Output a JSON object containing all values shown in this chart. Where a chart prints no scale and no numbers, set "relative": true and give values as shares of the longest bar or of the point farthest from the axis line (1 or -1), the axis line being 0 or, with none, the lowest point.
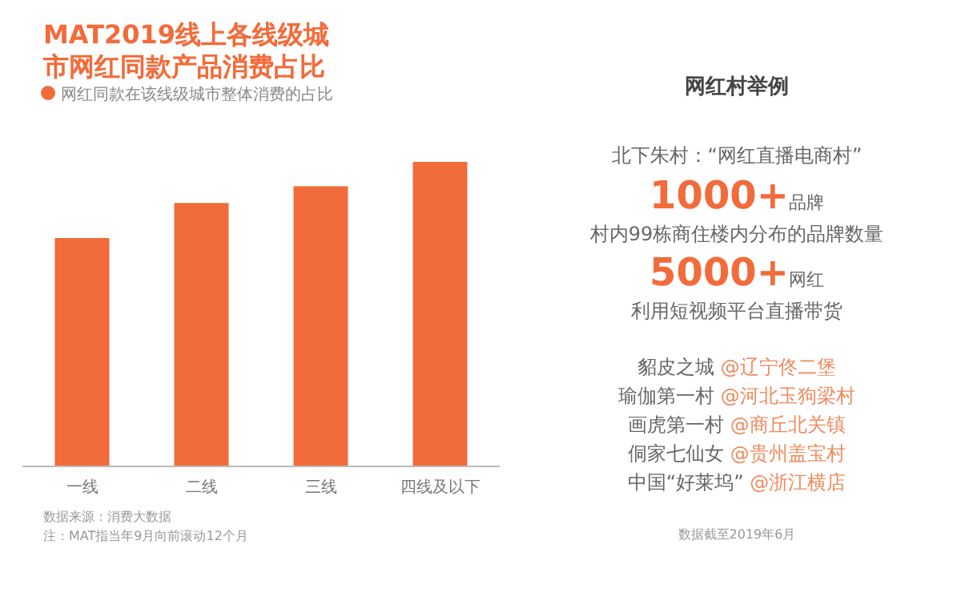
{
  "chart_data": [
    {
      "type": "bar",
      "title": "MAT2019线上各线级城市网红同款产品消费占比",
      "relative": true,
      "legend": "top left",
      "categories": [
        "一线",
        "二线",
        "三线",
        "四线及以下"
      ],
      "series": [
        {
          "name": "网红同款在该线级城市整体消费的占比",
          "color": "#f26b3a",
          "values": [
            0.75,
            0.865,
            0.92,
            1
          ]
        }
      ],
      "annotations": [
        "数据来源：消费大数据",
        "注：MAT指当年9月向前滚动12个月"
      ]
    },
    {
      "type": "other",
      "title": "网红村举例",
      "annotations": [
        "北下朱村：“网红直播电商村”",
        "1000+",
        "品牌",
        "村内99栋商住楼内分布的品牌数量",
        "5000+",
        "网红",
        "利用短视频平台直播带货",
        "貂皮之城",
        "@辽宁佟二堡",
        "瑜伽第一村",
        "@河北玉狗梁村",
        "画虎第一村",
        "@商丘北关镇",
        "侗家七仙女",
        "@贵州盖宝村",
        "中国“好莱坞”",
        "@浙江横店",
        "数据截至2019年6月"
      ]
    }
  ]
}
